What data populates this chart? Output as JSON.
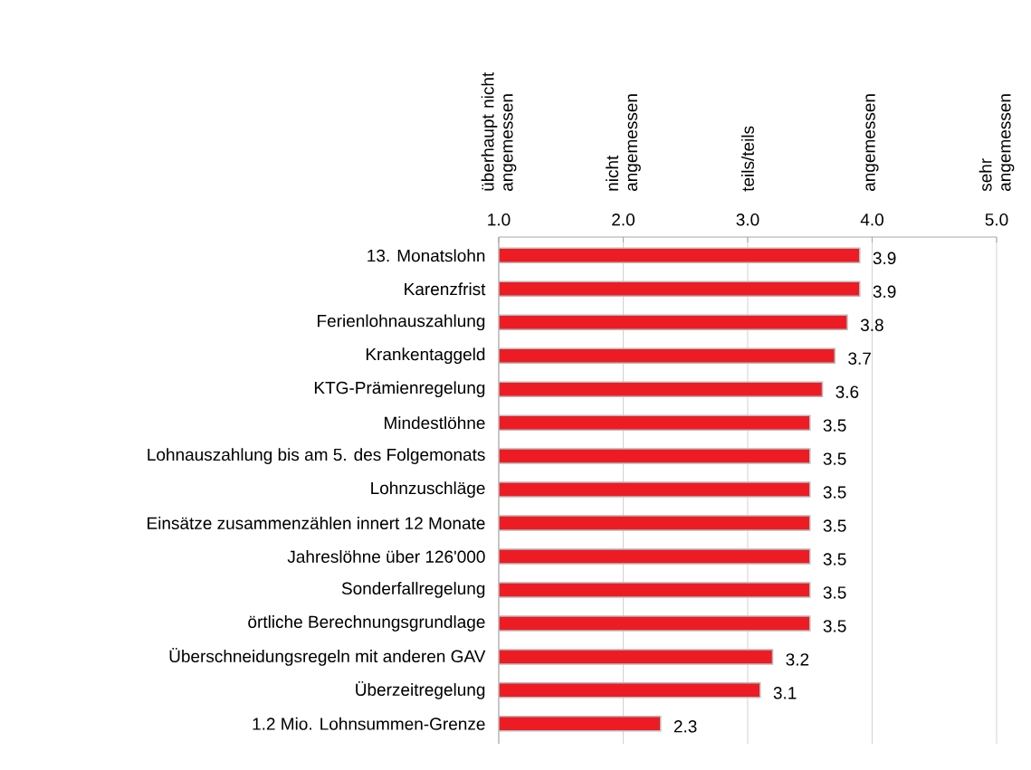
{
  "chart_data": {
    "type": "bar",
    "orientation": "horizontal",
    "categories": [
      "13. Monatslohn",
      "Karenzfrist",
      "Ferienlohnauszahlung",
      "Krankentaggeld",
      "KTG-Prämienregelung",
      "Mindestlöhne",
      "Lohnauszahlung bis am 5. des Folgemonats",
      "Lohnzuschläge",
      "Einsätze zusammenzählen innert 12 Monate",
      "Jahreslöhne über 126'000",
      "Sonderfallregelung",
      "örtliche Berechnungsgrundlage",
      "Überschneidungsregeln mit anderen GAV",
      "Überzeitregelung",
      "1.2 Mio. Lohnsummen-Grenze"
    ],
    "values": [
      3.9,
      3.9,
      3.8,
      3.7,
      3.6,
      3.5,
      3.5,
      3.5,
      3.5,
      3.5,
      3.5,
      3.5,
      3.2,
      3.1,
      2.3
    ],
    "color": "#ed1c24",
    "xlim": [
      1,
      5
    ],
    "xticks": [
      {
        "value": 1,
        "label": "1.0"
      },
      {
        "value": 2,
        "label": "2.0"
      },
      {
        "value": 3,
        "label": "3.0"
      },
      {
        "value": 4,
        "label": "4.0"
      },
      {
        "value": 5,
        "label": "5.0"
      }
    ],
    "annotations": [
      "überhaupt nicht angemessen",
      "nicht angemessen",
      "teils/teils",
      "angemessen",
      "sehr angemessen"
    ],
    "grid": "x",
    "data_labels": true
  }
}
